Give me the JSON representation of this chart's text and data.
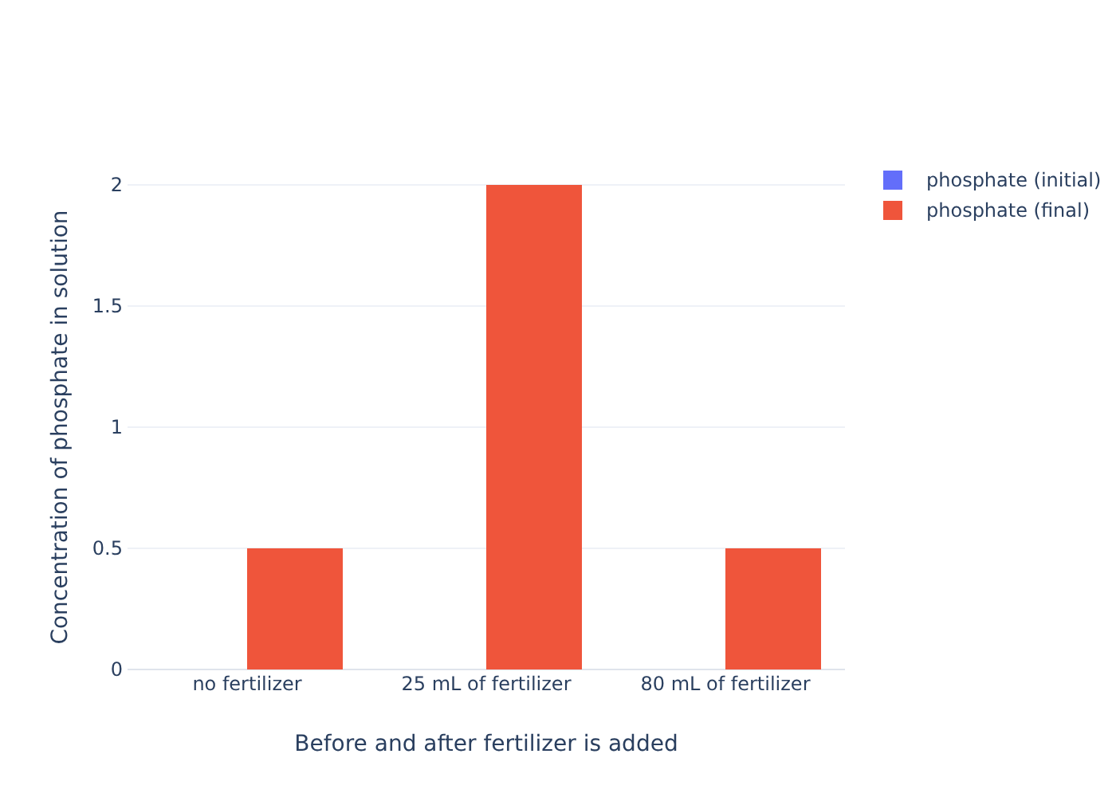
{
  "chart_data": {
    "type": "bar",
    "xlabel": "Before and after fertilizer is added",
    "ylabel": "Concentration of phosphate in solution",
    "categories": [
      "no fertilizer",
      "25 mL of fertilizer",
      "80 mL of fertilizer"
    ],
    "series": [
      {
        "name": "phosphate (initial)",
        "color": "#636efa",
        "values": [
          0,
          0,
          0
        ]
      },
      {
        "name": "phosphate (final)",
        "color": "#ef553b",
        "values": [
          0.5,
          2,
          0.5
        ]
      }
    ],
    "ylim": [
      0,
      2
    ],
    "yticks": [
      0,
      0.5,
      1,
      1.5,
      2
    ],
    "grid": "y",
    "legend": "top right"
  }
}
